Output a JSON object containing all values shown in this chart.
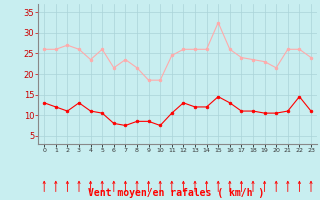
{
  "x": [
    0,
    1,
    2,
    3,
    4,
    5,
    6,
    7,
    8,
    9,
    10,
    11,
    12,
    13,
    14,
    15,
    16,
    17,
    18,
    19,
    20,
    21,
    22,
    23
  ],
  "wind_avg": [
    13,
    12,
    11,
    13,
    11,
    10.5,
    8,
    7.5,
    8.5,
    8.5,
    7.5,
    10.5,
    13,
    12,
    12,
    14.5,
    13,
    11,
    11,
    10.5,
    10.5,
    11,
    14.5,
    11
  ],
  "wind_gust": [
    26,
    26,
    27,
    26,
    23.5,
    26,
    21.5,
    23.5,
    21.5,
    18.5,
    18.5,
    24.5,
    26,
    26,
    26,
    32.5,
    26,
    24,
    23.5,
    23,
    21.5,
    26,
    26,
    24
  ],
  "avg_color": "#ff0000",
  "gust_color": "#ffaaaa",
  "bg_color": "#c8eef0",
  "grid_color": "#aad4d8",
  "xlabel": "Vent moyen/en rafales ( km/h )",
  "xlabel_color": "#ff0000",
  "xlabel_fontsize": 7,
  "ylabel_ticks": [
    5,
    10,
    15,
    20,
    25,
    30,
    35
  ],
  "ylim": [
    3,
    37
  ],
  "xlim": [
    -0.5,
    23.5
  ]
}
